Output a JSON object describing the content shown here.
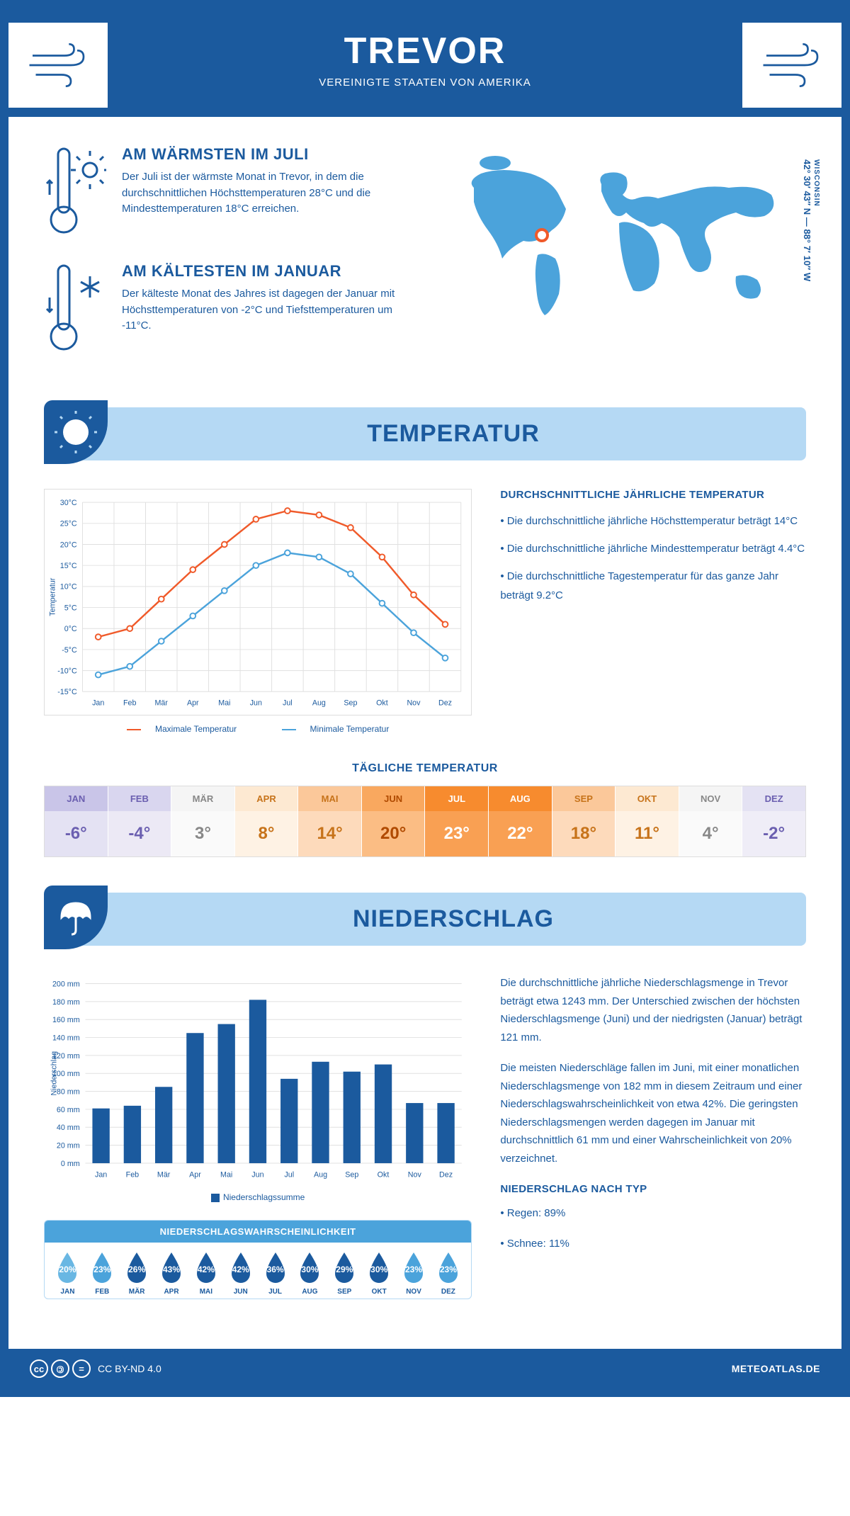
{
  "header": {
    "title": "TREVOR",
    "subtitle": "VEREINIGTE STAATEN VON AMERIKA"
  },
  "location": {
    "state": "WISCONSIN",
    "coords": "42° 30′ 43″ N — 88° 7′ 10″ W"
  },
  "facts": {
    "warm": {
      "title": "AM WÄRMSTEN IM JULI",
      "text": "Der Juli ist der wärmste Monat in Trevor, in dem die durchschnittlichen Höchsttemperaturen 28°C und die Mindesttemperaturen 18°C erreichen."
    },
    "cold": {
      "title": "AM KÄLTESTEN IM JANUAR",
      "text": "Der kälteste Monat des Jahres ist dagegen der Januar mit Höchsttemperaturen von -2°C und Tiefsttemperaturen um -11°C."
    }
  },
  "sections": {
    "temp": "TEMPERATUR",
    "precip": "NIEDERSCHLAG"
  },
  "temp_chart": {
    "months": [
      "Jan",
      "Feb",
      "Mär",
      "Apr",
      "Mai",
      "Jun",
      "Jul",
      "Aug",
      "Sep",
      "Okt",
      "Nov",
      "Dez"
    ],
    "max": [
      -2,
      0,
      7,
      14,
      20,
      26,
      28,
      27,
      24,
      17,
      8,
      1
    ],
    "min": [
      -11,
      -9,
      -3,
      3,
      9,
      15,
      18,
      17,
      13,
      6,
      -1,
      -7
    ],
    "ymin": -15,
    "ymax": 30,
    "ystep": 5,
    "max_color": "#f05a2a",
    "min_color": "#4ba3db",
    "grid_color": "#e0e0e0",
    "ylabel": "Temperatur",
    "legend_max": "Maximale Temperatur",
    "legend_min": "Minimale Temperatur"
  },
  "temp_info": {
    "title": "DURCHSCHNITTLICHE JÄHRLICHE TEMPERATUR",
    "l1": "• Die durchschnittliche jährliche Höchsttemperatur beträgt 14°C",
    "l2": "• Die durchschnittliche jährliche Mindesttemperatur beträgt 4.4°C",
    "l3": "• Die durchschnittliche Tagestemperatur für das ganze Jahr beträgt 9.2°C"
  },
  "daily": {
    "title": "TÄGLICHE TEMPERATUR",
    "months": [
      "JAN",
      "FEB",
      "MÄR",
      "APR",
      "MAI",
      "JUN",
      "JUL",
      "AUG",
      "SEP",
      "OKT",
      "NOV",
      "DEZ"
    ],
    "values": [
      "-6°",
      "-4°",
      "3°",
      "8°",
      "14°",
      "20°",
      "23°",
      "22°",
      "18°",
      "11°",
      "4°",
      "-2°"
    ],
    "head_colors": [
      "#c9c5e8",
      "#d9d6ef",
      "#f5f5f5",
      "#fde9d2",
      "#fbc89a",
      "#f9a85f",
      "#f78b2e",
      "#f78b2e",
      "#fbc89a",
      "#fde9d2",
      "#f5f5f5",
      "#e4e2f3"
    ],
    "val_colors": [
      "#e4e2f3",
      "#ece9f5",
      "#fafafa",
      "#fef2e4",
      "#fddabb",
      "#fbbd84",
      "#f9a053",
      "#f9a053",
      "#fddabb",
      "#fef2e4",
      "#fafafa",
      "#efedf7"
    ],
    "text_colors": [
      "#6b5fb0",
      "#6b5fb0",
      "#888",
      "#c7731a",
      "#c7731a",
      "#b04a00",
      "#fff",
      "#fff",
      "#c7731a",
      "#c7731a",
      "#888",
      "#6b5fb0"
    ]
  },
  "precip_chart": {
    "months": [
      "Jan",
      "Feb",
      "Mär",
      "Apr",
      "Mai",
      "Jun",
      "Jul",
      "Aug",
      "Sep",
      "Okt",
      "Nov",
      "Dez"
    ],
    "values": [
      61,
      64,
      85,
      145,
      155,
      182,
      94,
      113,
      102,
      110,
      67,
      67
    ],
    "ymin": 0,
    "ymax": 200,
    "ystep": 20,
    "bar_color": "#1b5a9e",
    "grid_color": "#e0e0e0",
    "ylabel": "Niederschlag",
    "legend": "Niederschlagssumme"
  },
  "precip_info": {
    "p1": "Die durchschnittliche jährliche Niederschlagsmenge in Trevor beträgt etwa 1243 mm. Der Unterschied zwischen der höchsten Niederschlagsmenge (Juni) und der niedrigsten (Januar) beträgt 121 mm.",
    "p2": "Die meisten Niederschläge fallen im Juni, mit einer monatlichen Niederschlagsmenge von 182 mm in diesem Zeitraum und einer Niederschlagswahrscheinlichkeit von etwa 42%. Die geringsten Niederschlagsmengen werden dagegen im Januar mit durchschnittlich 61 mm und einer Wahrscheinlichkeit von 20% verzeichnet.",
    "type_title": "NIEDERSCHLAG NACH TYP",
    "t1": "• Regen: 89%",
    "t2": "• Schnee: 11%"
  },
  "prob": {
    "title": "NIEDERSCHLAGSWAHRSCHEINLICHKEIT",
    "months": [
      "JAN",
      "FEB",
      "MÄR",
      "APR",
      "MAI",
      "JUN",
      "JUL",
      "AUG",
      "SEP",
      "OKT",
      "NOV",
      "DEZ"
    ],
    "values": [
      "20%",
      "23%",
      "26%",
      "43%",
      "42%",
      "42%",
      "36%",
      "30%",
      "29%",
      "30%",
      "23%",
      "23%"
    ],
    "colors": [
      "#69b7e3",
      "#4ba3db",
      "#1b5a9e",
      "#1b5a9e",
      "#1b5a9e",
      "#1b5a9e",
      "#1b5a9e",
      "#1b5a9e",
      "#1b5a9e",
      "#1b5a9e",
      "#4ba3db",
      "#4ba3db"
    ]
  },
  "footer": {
    "license": "CC BY-ND 4.0",
    "site": "METEOATLAS.DE"
  },
  "colors": {
    "primary": "#1b5a9e",
    "light": "#b5d9f4",
    "accent": "#f05a2a"
  }
}
